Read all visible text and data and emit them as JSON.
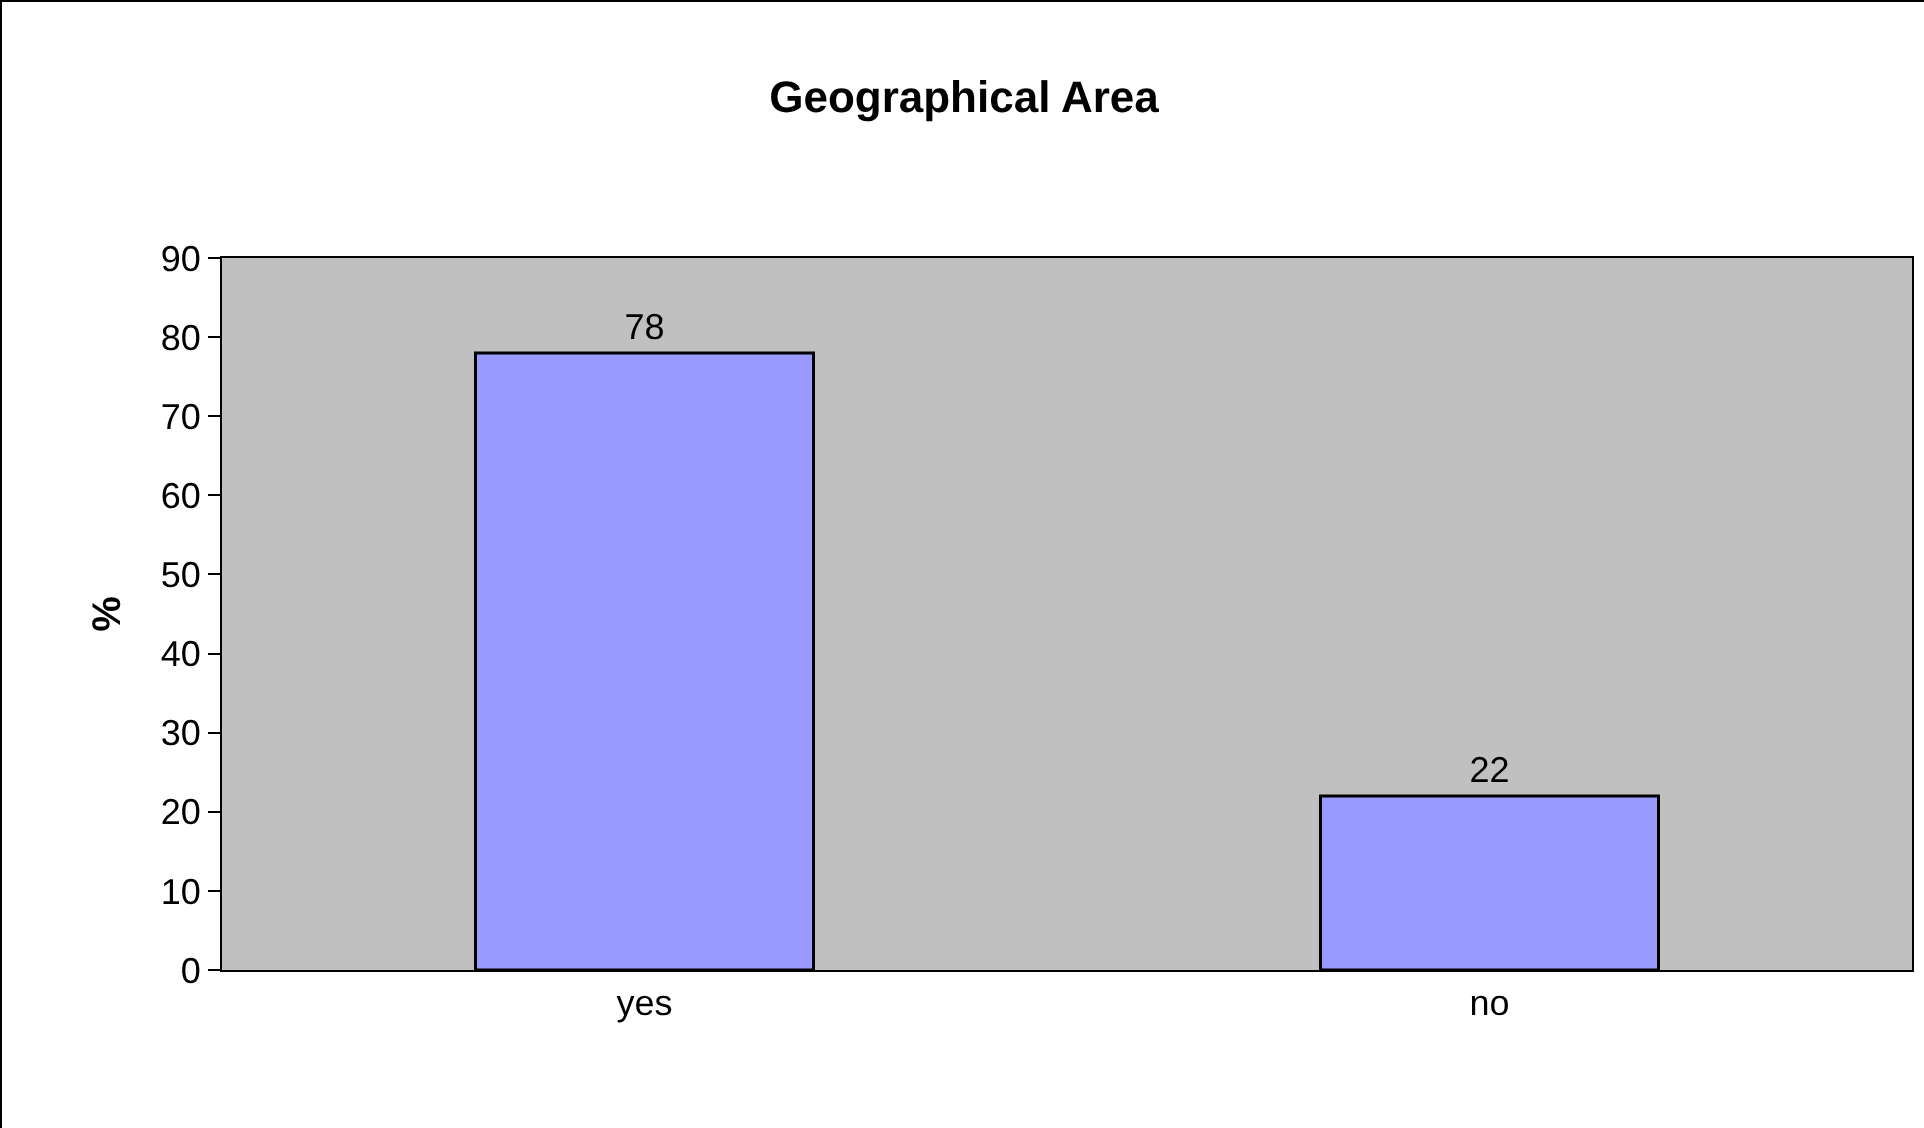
{
  "chart_data": {
    "type": "bar",
    "title": "Geographical Area",
    "ylabel": "%",
    "categories": [
      "yes",
      "no"
    ],
    "values": [
      78,
      22
    ],
    "color": "#9999ff",
    "ylim": [
      0,
      90
    ],
    "yticks": [
      0,
      10,
      20,
      30,
      40,
      50,
      60,
      70,
      80,
      90
    ],
    "grid": false,
    "legend": false,
    "data_labels": true
  }
}
